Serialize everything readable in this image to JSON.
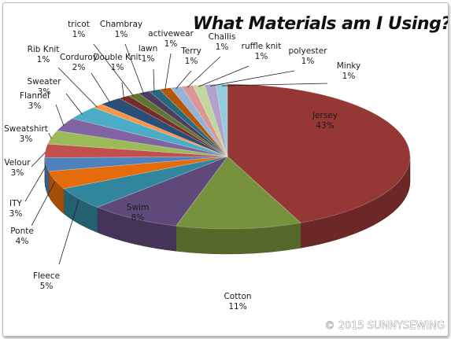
{
  "credit": "© 2015 SUNNYSEWING",
  "chart_data": {
    "type": "pie",
    "title": "What Materials am I Using?",
    "three_d": true,
    "categories": [
      "Jersey",
      "Cotton",
      "Swim",
      "Fleece",
      "Ponte",
      "ITY",
      "Velour",
      "Sweatshirt",
      "Flannel",
      "Sweater",
      "Rib Knit",
      "Corduroy",
      "Double Knit",
      "tricot",
      "Chambray",
      "lawn",
      "activewear",
      "Terry",
      "Challis",
      "ruffle knit",
      "polyester",
      "Minky"
    ],
    "values": [
      43,
      11,
      8,
      5,
      4,
      3,
      3,
      3,
      3,
      3,
      1,
      2,
      1,
      1,
      1,
      1,
      1,
      1,
      1,
      1,
      1,
      1
    ],
    "value_labels": [
      "43%",
      "11%",
      "8%",
      "5%",
      "4%",
      "3%",
      "3%",
      "3%",
      "3%",
      "3%",
      "1%",
      "2%",
      "1%",
      "1%",
      "1%",
      "1%",
      "1%",
      "1%",
      "1%",
      "1%",
      "1%",
      "1%"
    ],
    "colors": [
      "#953735",
      "#76923c",
      "#5f497a",
      "#31859c",
      "#e46c0a",
      "#4f81bd",
      "#c0504d",
      "#9bbb59",
      "#8064a2",
      "#4bacc6",
      "#f79646",
      "#2c4d75",
      "#772c2a",
      "#5f7530",
      "#4d3b62",
      "#276a7c",
      "#b65708",
      "#95b3d7",
      "#d99694",
      "#c3d69b",
      "#b3a2c7",
      "#93cddd"
    ],
    "legend": "none"
  }
}
